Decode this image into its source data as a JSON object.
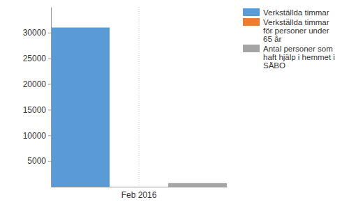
{
  "chart_data": {
    "type": "bar",
    "categories": [
      "Feb 2016"
    ],
    "series": [
      {
        "name": "Verkställda timmar",
        "color": "#5b9bd5",
        "values": [
          31000
        ]
      },
      {
        "name": "Verkställda timmar för personer under 65 år",
        "color": "#ed7d31",
        "values": [
          0
        ]
      },
      {
        "name": "Antal personer som haft hjälp i hemmet i SÄBO",
        "color": "#a5a5a5",
        "values": [
          700
        ]
      }
    ],
    "ylim": [
      0,
      35000
    ],
    "yticks": [
      5000,
      10000,
      15000,
      20000,
      25000,
      30000
    ],
    "grid": "x",
    "legend": "top-right"
  }
}
